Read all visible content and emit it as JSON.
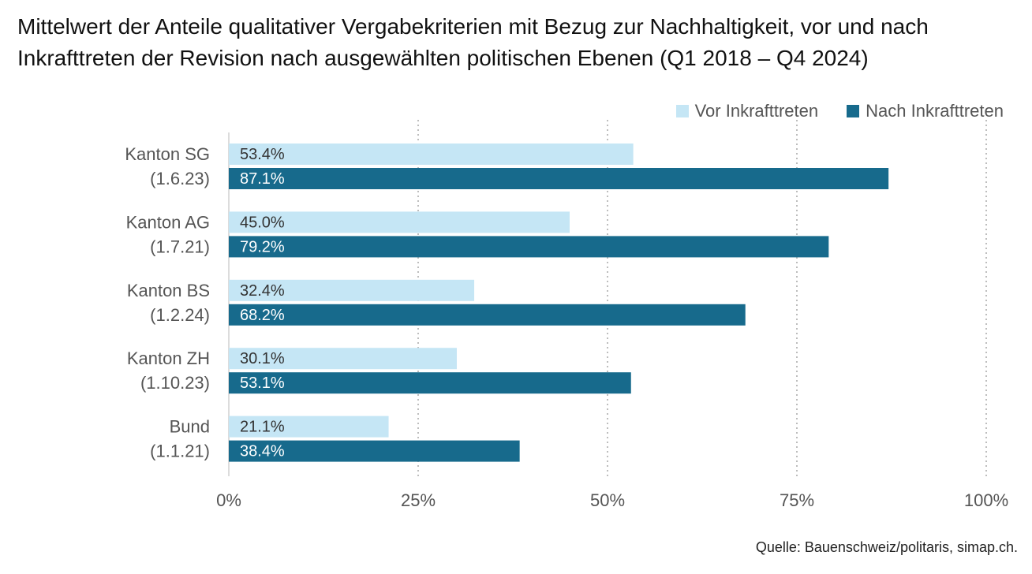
{
  "title_lines": [
    "Mittelwert der Anteile qualitativer Vergabekriterien mit Bezug zur Nachhaltigkeit, vor und nach",
    "Inkrafttreten der Revision nach ausgewählten politischen Ebenen (Q1 2018 – Q4 2024)"
  ],
  "source": "Quelle: Bauenschweiz/politaris, simap.ch.",
  "colors": {
    "vor": "#c5e6f5",
    "nach": "#176a8c"
  },
  "chart_data": {
    "type": "bar",
    "orientation": "horizontal",
    "categories": [
      [
        "Kanton SG",
        "(1.6.23)"
      ],
      [
        "Kanton AG",
        "(1.7.21)"
      ],
      [
        "Kanton BS",
        "(1.2.24)"
      ],
      [
        "Kanton ZH",
        "(1.10.23)"
      ],
      [
        "Bund",
        "(1.1.21)"
      ]
    ],
    "series": [
      {
        "name": "Vor Inkrafttreten",
        "values": [
          53.4,
          45.0,
          32.4,
          30.1,
          21.1
        ],
        "labels": [
          "53.4%",
          "45.0%",
          "32.4%",
          "30.1%",
          "21.1%"
        ]
      },
      {
        "name": "Nach Inkrafttreten",
        "values": [
          87.1,
          79.2,
          68.2,
          53.1,
          38.4
        ],
        "labels": [
          "87.1%",
          "79.2%",
          "68.2%",
          "53.1%",
          "38.4%"
        ]
      }
    ],
    "xlim": [
      0,
      100
    ],
    "xticks": [
      0,
      25,
      50,
      75,
      100
    ],
    "xtick_labels": [
      "0%",
      "25%",
      "50%",
      "75%",
      "100%"
    ],
    "grid": "vertical dotted",
    "legend_position": "top-right"
  }
}
